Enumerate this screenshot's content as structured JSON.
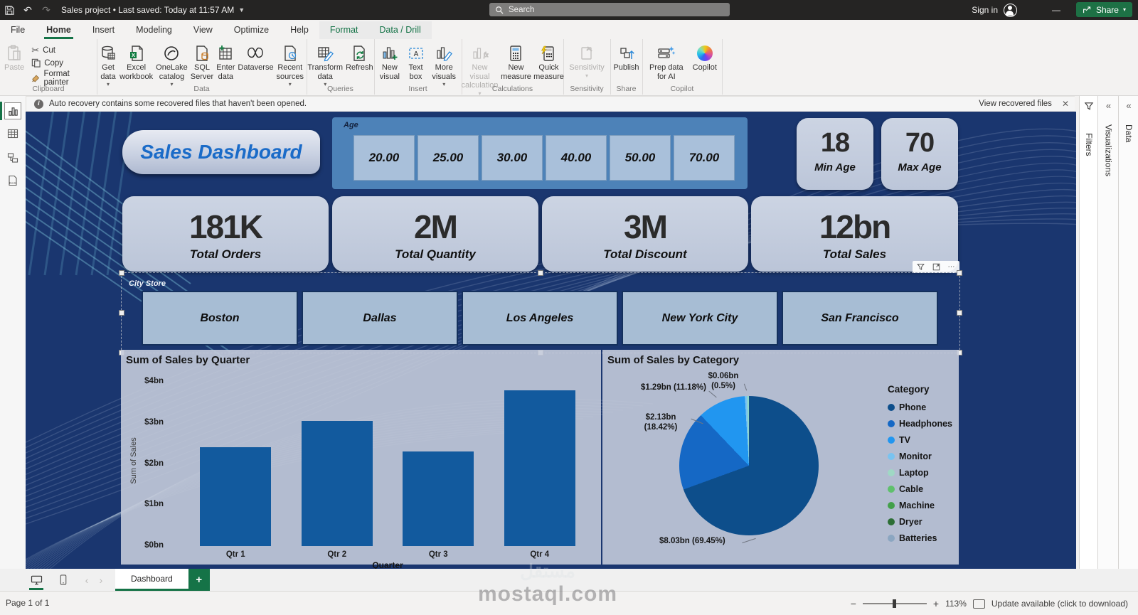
{
  "titlebar": {
    "title": "Sales project • Last saved: Today at 11:57 AM",
    "search_placeholder": "Search",
    "sign_in_label": "Sign in"
  },
  "menu": {
    "tabs": [
      {
        "label": "File"
      },
      {
        "label": "Home",
        "active": true
      },
      {
        "label": "Insert"
      },
      {
        "label": "Modeling"
      },
      {
        "label": "View"
      },
      {
        "label": "Optimize"
      },
      {
        "label": "Help"
      },
      {
        "label": "Format",
        "contextual": true
      },
      {
        "label": "Data / Drill",
        "contextual": true
      }
    ],
    "share_label": "Share"
  },
  "ribbon": {
    "groups": [
      {
        "label": "Clipboard",
        "buttons": [
          {
            "label": "Paste"
          },
          {
            "label": "Cut"
          },
          {
            "label": "Copy"
          },
          {
            "label": "Format painter"
          }
        ]
      },
      {
        "label": "Data",
        "buttons": [
          {
            "label": "Get data"
          },
          {
            "label": "Excel workbook"
          },
          {
            "label": "OneLake catalog"
          },
          {
            "label": "SQL Server"
          },
          {
            "label": "Enter data"
          },
          {
            "label": "Dataverse"
          },
          {
            "label": "Recent sources"
          }
        ]
      },
      {
        "label": "Queries",
        "buttons": [
          {
            "label": "Transform data"
          },
          {
            "label": "Refresh"
          }
        ]
      },
      {
        "label": "Insert",
        "buttons": [
          {
            "label": "New visual"
          },
          {
            "label": "Text box"
          },
          {
            "label": "More visuals"
          }
        ]
      },
      {
        "label": "Calculations",
        "buttons": [
          {
            "label": "New visual calculation"
          },
          {
            "label": "New measure"
          },
          {
            "label": "Quick measure"
          }
        ]
      },
      {
        "label": "Sensitivity",
        "buttons": [
          {
            "label": "Sensitivity"
          }
        ]
      },
      {
        "label": "Share",
        "buttons": [
          {
            "label": "Publish"
          }
        ]
      },
      {
        "label": "Copilot",
        "buttons": [
          {
            "label": "Prep data for AI"
          },
          {
            "label": "Copilot"
          }
        ]
      }
    ]
  },
  "notification": {
    "message": "Auto recovery contains some recovered files that haven't been opened.",
    "action_label": "View recovered files"
  },
  "left_nav": {
    "items": [
      "report-view",
      "table-view",
      "model-view",
      "dax-query-view"
    ]
  },
  "right_panels": {
    "filters_label": "Filters",
    "visualizations_label": "Visualizations",
    "data_label": "Data"
  },
  "dashboard": {
    "title": "Sales Dashboard",
    "age_slicer": {
      "header": "Age",
      "options": [
        "20.00",
        "25.00",
        "30.00",
        "40.00",
        "50.00",
        "70.00"
      ]
    },
    "min_age_card": {
      "value": "18",
      "label": "Min Age"
    },
    "max_age_card": {
      "value": "70",
      "label": "Max Age"
    },
    "kpi_cards": [
      {
        "value": "181K",
        "label": "Total Orders"
      },
      {
        "value": "2M",
        "label": "Total Quantity"
      },
      {
        "value": "3M",
        "label": "Total Discount"
      },
      {
        "value": "12bn",
        "label": "Total Sales"
      }
    ],
    "city_slicer": {
      "header": "City Store",
      "options": [
        "Boston",
        "Dallas",
        "Los Angeles",
        "New York City",
        "San Francisco"
      ]
    }
  },
  "chart_data": [
    {
      "type": "bar",
      "title": "Sum of Sales by Quarter",
      "categories": [
        "Qtr 1",
        "Qtr 2",
        "Qtr 3",
        "Qtr 4"
      ],
      "values": [
        2.4,
        3.05,
        2.3,
        3.8
      ],
      "value_unit": "bn $",
      "xlabel": "Quarter",
      "ylabel": "Sum of Sales",
      "ylim": [
        0,
        4
      ],
      "ytick_labels": [
        "$0bn",
        "$1bn",
        "$2bn",
        "$3bn",
        "$4bn"
      ],
      "grid": false,
      "bar_color": "#125a9e"
    },
    {
      "type": "pie",
      "title": "Sum of Sales by Category",
      "legend_title": "Category",
      "legend_position": "right",
      "slices": [
        {
          "label": "Phone",
          "percent": 69.45,
          "value_label": "$8.03bn (69.45%)",
          "color": "#0d4e8b"
        },
        {
          "label": "Headphones",
          "percent": 18.42,
          "value_label": "$2.13bn (18.42%)",
          "color": "#1568c5"
        },
        {
          "label": "TV",
          "percent": 11.18,
          "value_label": "$1.29bn (11.18%)",
          "color": "#2196f0"
        },
        {
          "label": "Monitor",
          "percent": 0.5,
          "value_label": "$0.06bn (0.5%)",
          "color": "#79c3f0"
        },
        {
          "label": "Laptop",
          "percent": 0.45,
          "value_label": "",
          "color": "#8fd6c9"
        }
      ],
      "legend": [
        {
          "label": "Phone",
          "color": "#0d4e8b"
        },
        {
          "label": "Headphones",
          "color": "#1568c5"
        },
        {
          "label": "TV",
          "color": "#2196f0"
        },
        {
          "label": "Monitor",
          "color": "#79c3f0"
        },
        {
          "label": "Laptop",
          "color": "#9fd8c4"
        },
        {
          "label": "Cable",
          "color": "#5fc06c"
        },
        {
          "label": "Machine",
          "color": "#43a04a"
        },
        {
          "label": "Dryer",
          "color": "#2c6e35"
        },
        {
          "label": "Batteries",
          "color": "#8ba6c1"
        }
      ]
    }
  ],
  "page_tabs": {
    "active_tab": "Dashboard"
  },
  "status_bar": {
    "page_indicator": "Page 1 of 1",
    "zoom_level": "113%",
    "update_text": "Update available (click to download)"
  },
  "watermark": {
    "line1": "مستقل",
    "line2": "mostaql.com"
  },
  "colors": {
    "accent_green": "#157347",
    "canvas_navy": "#1a366f",
    "bar_color": "#125a9e",
    "panel_bg": "#c4cbda",
    "age_panel": "#4d82b8",
    "slicer_button": "#a7bdd4",
    "card_bg": "#c3cddd"
  }
}
